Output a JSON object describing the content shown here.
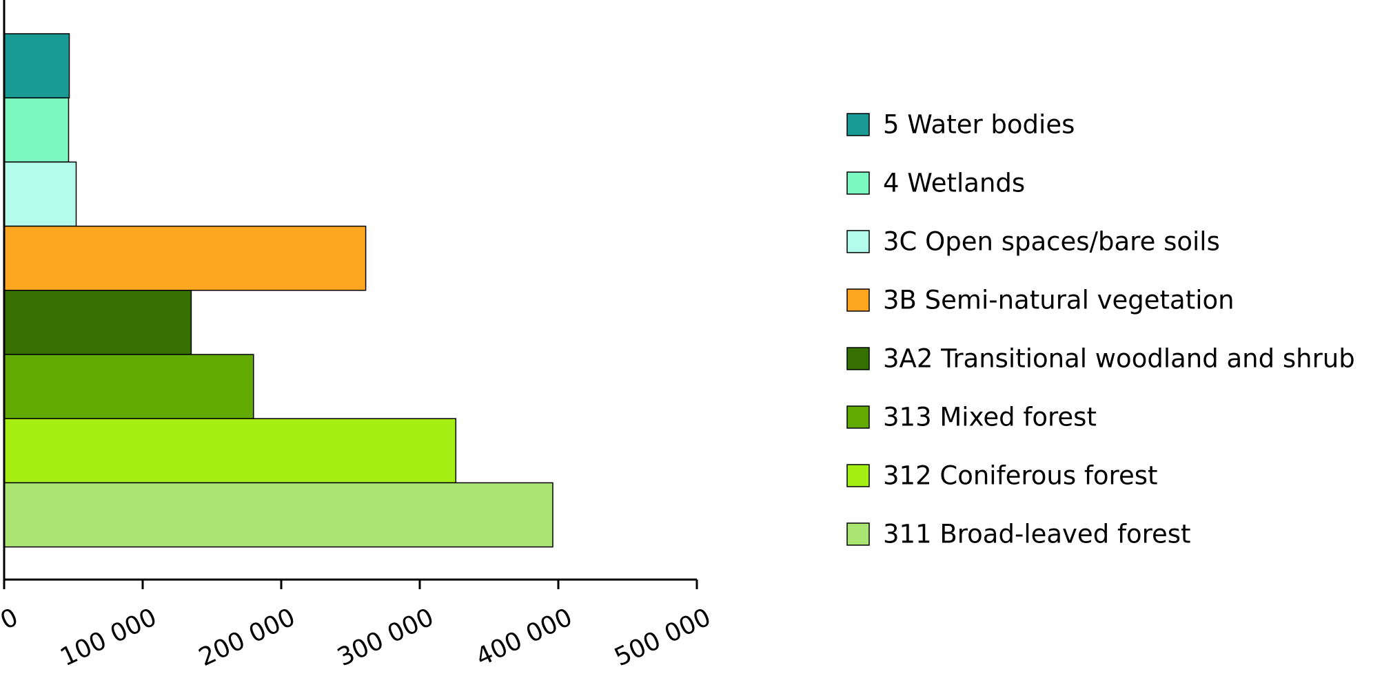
{
  "chart_data": {
    "type": "bar",
    "orientation": "horizontal",
    "title": "",
    "xlabel": "",
    "ylabel": "",
    "xlim": [
      0,
      500000
    ],
    "x_ticks": [
      0,
      100000,
      200000,
      300000,
      400000,
      500000
    ],
    "x_tick_labels": [
      "0",
      "100 000",
      "200 000",
      "300 000",
      "400 000",
      "500 000"
    ],
    "grid": false,
    "legend_position": "right",
    "categories": [
      "5 Water bodies",
      "4 Wetlands",
      "3C Open spaces/bare soils",
      "3B Semi-natural vegetation",
      "3A2 Transitional woodland and shrub",
      "313 Mixed forest",
      "312 Coniferous forest",
      "311 Broad-leaved forest"
    ],
    "values": [
      47000,
      46500,
      52000,
      261000,
      135000,
      180000,
      326000,
      396000
    ],
    "colors": [
      "#1a9a94",
      "#7cf9c1",
      "#b3fbea",
      "#fea620",
      "#367100",
      "#62a902",
      "#a6ef14",
      "#aae574"
    ]
  }
}
